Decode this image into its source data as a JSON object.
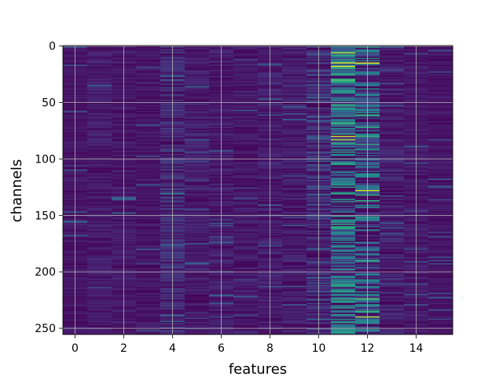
{
  "chart_data": {
    "type": "heatmap",
    "title": "",
    "xlabel": "features",
    "ylabel": "channels",
    "colormap": "viridis",
    "grid": true,
    "n_cols": 16,
    "n_rows": 256,
    "xlim": [
      -0.5,
      15.5
    ],
    "ylim": [
      255.5,
      -0.5
    ],
    "xticks": [
      0,
      2,
      4,
      6,
      8,
      10,
      12,
      14
    ],
    "yticks": [
      0,
      50,
      100,
      150,
      200,
      250
    ],
    "column_profile": [
      0.07,
      0.09,
      0.08,
      0.07,
      0.12,
      0.09,
      0.09,
      0.08,
      0.1,
      0.09,
      0.15,
      0.35,
      0.3,
      0.1,
      0.08,
      0.07
    ],
    "column_spread": [
      0.05,
      0.07,
      0.06,
      0.06,
      0.12,
      0.08,
      0.08,
      0.07,
      0.08,
      0.08,
      0.15,
      0.35,
      0.32,
      0.1,
      0.06,
      0.05
    ],
    "highlights": [
      {
        "col": 11,
        "row": 6,
        "value": 0.92
      },
      {
        "col": 11,
        "row": 15,
        "value": 0.95
      },
      {
        "col": 11,
        "row": 18,
        "value": 0.98
      },
      {
        "col": 12,
        "row": 15,
        "value": 0.97
      },
      {
        "col": 11,
        "row": 30,
        "value": 0.8
      },
      {
        "col": 11,
        "row": 52,
        "value": 0.7
      },
      {
        "col": 12,
        "row": 61,
        "value": 0.75
      },
      {
        "col": 11,
        "row": 80,
        "value": 0.95
      },
      {
        "col": 11,
        "row": 83,
        "value": 0.9
      },
      {
        "col": 12,
        "row": 87,
        "value": 0.7
      },
      {
        "col": 12,
        "row": 128,
        "value": 0.95
      },
      {
        "col": 12,
        "row": 137,
        "value": 0.75
      },
      {
        "col": 4,
        "row": 131,
        "value": 0.55
      },
      {
        "col": 11,
        "row": 166,
        "value": 0.6
      },
      {
        "col": 11,
        "row": 178,
        "value": 0.65
      },
      {
        "col": 12,
        "row": 224,
        "value": 0.8
      },
      {
        "col": 11,
        "row": 242,
        "value": 0.6
      },
      {
        "col": 12,
        "row": 240,
        "value": 0.9
      },
      {
        "col": 5,
        "row": 36,
        "value": 0.45
      },
      {
        "col": 2,
        "row": 148,
        "value": 0.45
      },
      {
        "col": 6,
        "row": 221,
        "value": 0.45
      },
      {
        "col": 10,
        "row": 242,
        "value": 0.45
      }
    ]
  }
}
